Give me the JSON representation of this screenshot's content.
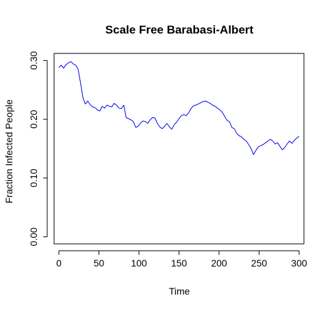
{
  "chart_data": {
    "type": "line",
    "title": "Scale Free Barabasi-Albert",
    "xlabel": "Time",
    "ylabel": "Fraction Infected People",
    "xlim": [
      -6,
      306
    ],
    "ylim": [
      -0.012,
      0.312
    ],
    "x_ticks": [
      0,
      50,
      100,
      150,
      200,
      250,
      300
    ],
    "x_tick_labels": [
      "0",
      "50",
      "100",
      "150",
      "200",
      "250",
      "300"
    ],
    "y_ticks": [
      0.0,
      0.1,
      0.2,
      0.3
    ],
    "y_tick_labels": [
      "0.00",
      "0.10",
      "0.20",
      "0.30"
    ],
    "grid": false,
    "series": [
      {
        "color": "#0000ee",
        "x": [
          0,
          3,
          6,
          9,
          12,
          15,
          18,
          21,
          24,
          27,
          30,
          33,
          36,
          39,
          42,
          45,
          48,
          51,
          54,
          57,
          60,
          63,
          66,
          69,
          72,
          75,
          78,
          81,
          84,
          87,
          90,
          93,
          96,
          99,
          102,
          105,
          108,
          111,
          114,
          117,
          120,
          123,
          126,
          129,
          132,
          135,
          138,
          141,
          144,
          147,
          150,
          153,
          156,
          159,
          162,
          165,
          168,
          171,
          174,
          177,
          180,
          183,
          186,
          189,
          192,
          195,
          198,
          201,
          204,
          207,
          210,
          213,
          216,
          219,
          222,
          225,
          228,
          231,
          234,
          237,
          240,
          243,
          246,
          249,
          252,
          255,
          258,
          261,
          264,
          267,
          270,
          273,
          276,
          279,
          282,
          285,
          288,
          291,
          294,
          297,
          300
        ],
        "y": [
          0.288,
          0.292,
          0.287,
          0.293,
          0.296,
          0.298,
          0.294,
          0.292,
          0.285,
          0.262,
          0.237,
          0.226,
          0.231,
          0.225,
          0.221,
          0.22,
          0.216,
          0.214,
          0.222,
          0.219,
          0.224,
          0.222,
          0.221,
          0.227,
          0.224,
          0.219,
          0.218,
          0.224,
          0.203,
          0.201,
          0.199,
          0.196,
          0.186,
          0.188,
          0.194,
          0.197,
          0.196,
          0.193,
          0.199,
          0.203,
          0.202,
          0.193,
          0.187,
          0.184,
          0.188,
          0.193,
          0.187,
          0.183,
          0.191,
          0.195,
          0.201,
          0.206,
          0.208,
          0.206,
          0.211,
          0.218,
          0.223,
          0.224,
          0.226,
          0.228,
          0.23,
          0.231,
          0.229,
          0.227,
          0.224,
          0.222,
          0.219,
          0.216,
          0.212,
          0.205,
          0.198,
          0.196,
          0.186,
          0.184,
          0.176,
          0.172,
          0.17,
          0.166,
          0.163,
          0.157,
          0.15,
          0.14,
          0.147,
          0.153,
          0.155,
          0.157,
          0.16,
          0.163,
          0.166,
          0.163,
          0.158,
          0.16,
          0.154,
          0.148,
          0.152,
          0.158,
          0.163,
          0.159,
          0.164,
          0.168,
          0.171
        ]
      }
    ]
  }
}
